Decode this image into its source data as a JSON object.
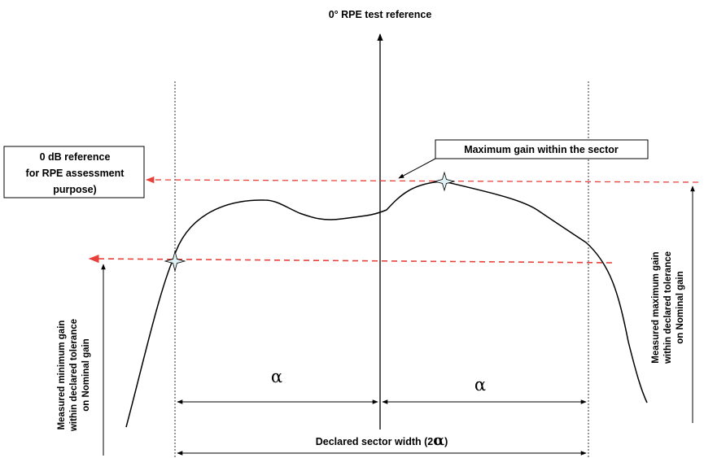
{
  "axis_label": "0° RPE test reference",
  "reference_box": {
    "lines": [
      "0 dB reference",
      "for RPE assessment",
      "purpose)"
    ]
  },
  "max_gain_box": "Maximum gain within the sector",
  "left_vertical_label": [
    "Measured minimum gain",
    "within declared tolerance",
    "on Nominal gain"
  ],
  "right_vertical_label": [
    "Measured maximum gain",
    "within declared tolerance",
    "on Nominal gain"
  ],
  "alpha_left": "α",
  "alpha_right": "α",
  "sector_label": {
    "prefix": "Declared sector width (2",
    "symbol": "α",
    "suffix": ")"
  },
  "colors": {
    "reference_line": "#e8413c",
    "curve": "#000000",
    "marker_fill": "#dff2f6"
  }
}
